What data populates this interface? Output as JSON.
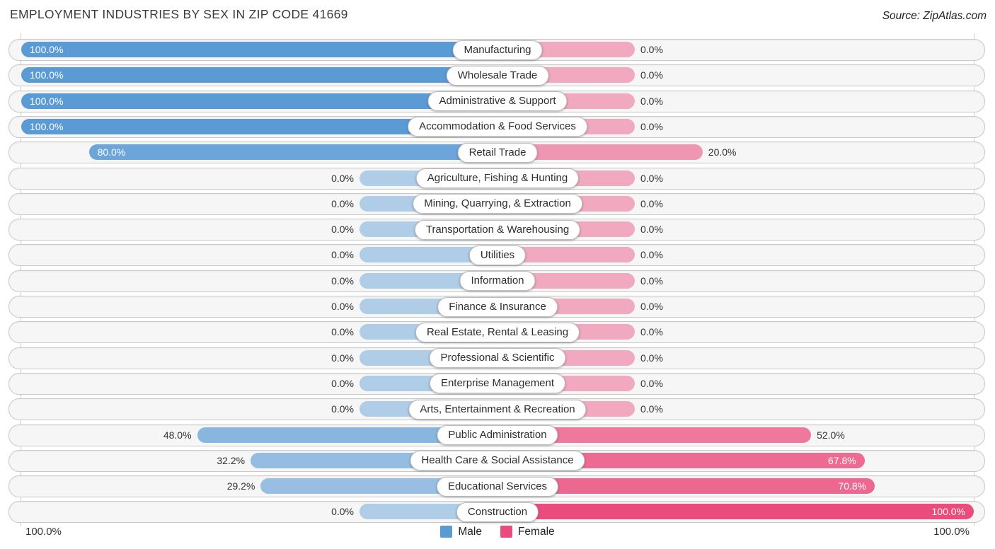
{
  "title": "EMPLOYMENT INDUSTRIES BY SEX IN ZIP CODE 41669",
  "source": "Source: ZipAtlas.com",
  "axis": {
    "left_label": "100.0%",
    "right_label": "100.0%"
  },
  "legend": {
    "male_label": "Male",
    "female_label": "Female"
  },
  "colors": {
    "male_base": "#5b9bd5",
    "female_base": "#ea4c7d",
    "male_rgb": [
      91,
      155,
      213
    ],
    "female_rgb": [
      234,
      76,
      125
    ],
    "min_alpha": 0.45,
    "track_bg": "#f6f6f6",
    "track_border": "#c9c9c9"
  },
  "chart_data": {
    "type": "bar",
    "orientation": "horizontal-diverging",
    "title": "Employment Industries by Sex in Zip Code 41669",
    "categories": [
      "Manufacturing",
      "Wholesale Trade",
      "Administrative & Support",
      "Accommodation & Food Services",
      "Retail Trade",
      "Agriculture, Fishing & Hunting",
      "Mining, Quarrying, & Extraction",
      "Transportation & Warehousing",
      "Utilities",
      "Information",
      "Finance & Insurance",
      "Real Estate, Rental & Leasing",
      "Professional & Scientific",
      "Enterprise Management",
      "Arts, Entertainment & Recreation",
      "Public Administration",
      "Health Care & Social Assistance",
      "Educational Services",
      "Construction"
    ],
    "series": [
      {
        "name": "Male",
        "values": [
          100.0,
          100.0,
          100.0,
          100.0,
          80.0,
          0.0,
          0.0,
          0.0,
          0.0,
          0.0,
          0.0,
          0.0,
          0.0,
          0.0,
          0.0,
          48.0,
          32.2,
          29.2,
          0.0
        ]
      },
      {
        "name": "Female",
        "values": [
          0.0,
          0.0,
          0.0,
          0.0,
          20.0,
          0.0,
          0.0,
          0.0,
          0.0,
          0.0,
          0.0,
          0.0,
          0.0,
          0.0,
          0.0,
          52.0,
          67.8,
          70.8,
          100.0
        ]
      }
    ],
    "xlim_male": [
      100,
      0
    ],
    "xlim_female": [
      0,
      100
    ],
    "legend_position": "bottom-center",
    "grid": "100% gridlines at both ends"
  },
  "rows": [
    {
      "label": "Manufacturing",
      "male": 100.0,
      "female": 0.0,
      "male_text": "100.0%",
      "female_text": "0.0%"
    },
    {
      "label": "Wholesale Trade",
      "male": 100.0,
      "female": 0.0,
      "male_text": "100.0%",
      "female_text": "0.0%"
    },
    {
      "label": "Administrative & Support",
      "male": 100.0,
      "female": 0.0,
      "male_text": "100.0%",
      "female_text": "0.0%"
    },
    {
      "label": "Accommodation & Food Services",
      "male": 100.0,
      "female": 0.0,
      "male_text": "100.0%",
      "female_text": "0.0%"
    },
    {
      "label": "Retail Trade",
      "male": 80.0,
      "female": 20.0,
      "male_text": "80.0%",
      "female_text": "20.0%"
    },
    {
      "label": "Agriculture, Fishing & Hunting",
      "male": 0.0,
      "female": 0.0,
      "male_text": "0.0%",
      "female_text": "0.0%"
    },
    {
      "label": "Mining, Quarrying, & Extraction",
      "male": 0.0,
      "female": 0.0,
      "male_text": "0.0%",
      "female_text": "0.0%"
    },
    {
      "label": "Transportation & Warehousing",
      "male": 0.0,
      "female": 0.0,
      "male_text": "0.0%",
      "female_text": "0.0%"
    },
    {
      "label": "Utilities",
      "male": 0.0,
      "female": 0.0,
      "male_text": "0.0%",
      "female_text": "0.0%"
    },
    {
      "label": "Information",
      "male": 0.0,
      "female": 0.0,
      "male_text": "0.0%",
      "female_text": "0.0%"
    },
    {
      "label": "Finance & Insurance",
      "male": 0.0,
      "female": 0.0,
      "male_text": "0.0%",
      "female_text": "0.0%"
    },
    {
      "label": "Real Estate, Rental & Leasing",
      "male": 0.0,
      "female": 0.0,
      "male_text": "0.0%",
      "female_text": "0.0%"
    },
    {
      "label": "Professional & Scientific",
      "male": 0.0,
      "female": 0.0,
      "male_text": "0.0%",
      "female_text": "0.0%"
    },
    {
      "label": "Enterprise Management",
      "male": 0.0,
      "female": 0.0,
      "male_text": "0.0%",
      "female_text": "0.0%"
    },
    {
      "label": "Arts, Entertainment & Recreation",
      "male": 0.0,
      "female": 0.0,
      "male_text": "0.0%",
      "female_text": "0.0%"
    },
    {
      "label": "Public Administration",
      "male": 48.0,
      "female": 52.0,
      "male_text": "48.0%",
      "female_text": "52.0%"
    },
    {
      "label": "Health Care & Social Assistance",
      "male": 32.2,
      "female": 67.8,
      "male_text": "32.2%",
      "female_text": "67.8%"
    },
    {
      "label": "Educational Services",
      "male": 29.2,
      "female": 70.8,
      "male_text": "29.2%",
      "female_text": "70.8%"
    },
    {
      "label": "Construction",
      "male": 0.0,
      "female": 100.0,
      "male_text": "0.0%",
      "female_text": "100.0%"
    }
  ]
}
